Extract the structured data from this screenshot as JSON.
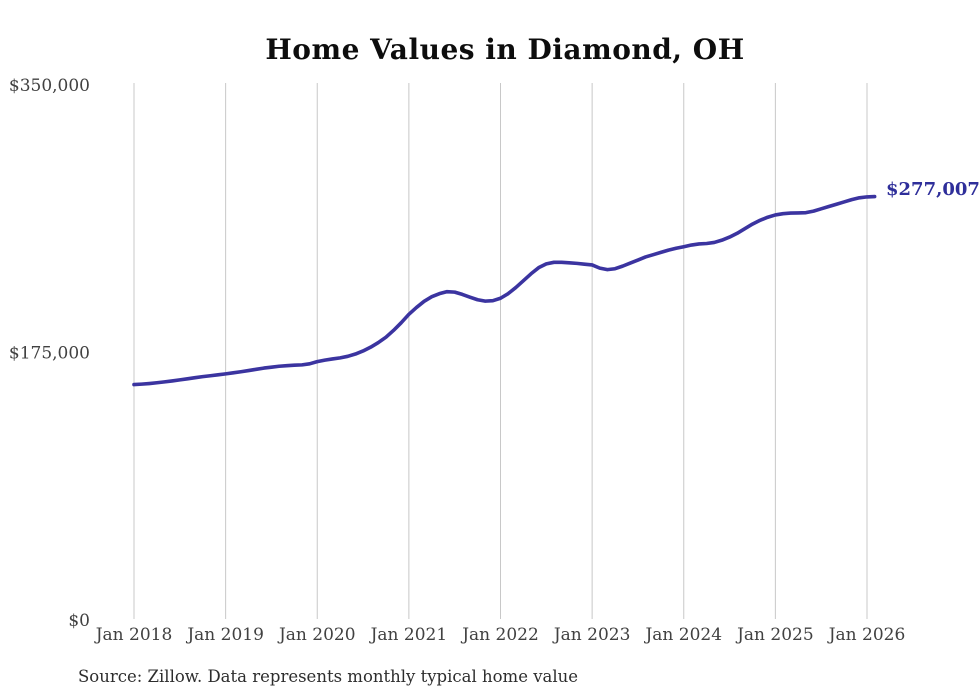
{
  "chart_data": {
    "type": "line",
    "title": "Home Values in Diamond, OH",
    "source_note": "Source: Zillow. Data represents monthly typical home value",
    "end_label": "$277,007",
    "line_color": "#3b34a0",
    "end_label_color": "#2e2e9a",
    "grid": "vertical-only",
    "legend": "none",
    "ylim": [
      0,
      350000
    ],
    "y_ticks": [
      {
        "label": "$0",
        "value": 0
      },
      {
        "label": "$175,000",
        "value": 175000
      },
      {
        "label": "$350,000",
        "value": 350000
      }
    ],
    "x_tick_labels": [
      "Jan 2018",
      "Jan 2019",
      "Jan 2020",
      "Jan 2021",
      "Jan 2022",
      "Jan 2023",
      "Jan 2024",
      "Jan 2025",
      "Jan 2026"
    ],
    "series": [
      {
        "name": "Monthly typical home value",
        "start_month": "2018-01",
        "end_month": "2026-02",
        "monthly_values": [
          154000,
          154300,
          154700,
          155200,
          155800,
          156400,
          157100,
          157800,
          158500,
          159200,
          159800,
          160400,
          161000,
          161700,
          162400,
          163200,
          164000,
          164800,
          165400,
          166000,
          166400,
          166700,
          166900,
          167600,
          169000,
          170000,
          170800,
          171500,
          172500,
          174000,
          176000,
          178500,
          181500,
          185000,
          189500,
          194500,
          200000,
          204500,
          208500,
          211500,
          213500,
          214800,
          214500,
          213000,
          211200,
          209500,
          208600,
          208900,
          210500,
          213500,
          217500,
          222000,
          226500,
          230500,
          233000,
          234000,
          234000,
          233700,
          233300,
          232800,
          232300,
          230200,
          229200,
          229800,
          231500,
          233500,
          235500,
          237500,
          239000,
          240500,
          242000,
          243200,
          244200,
          245300,
          246000,
          246300,
          247000,
          248500,
          250500,
          253000,
          256000,
          259000,
          261500,
          263500,
          265000,
          265800,
          266200,
          266300,
          266500,
          267500,
          269000,
          270500,
          272000,
          273500,
          275000,
          276200,
          276800,
          277007
        ]
      }
    ]
  }
}
